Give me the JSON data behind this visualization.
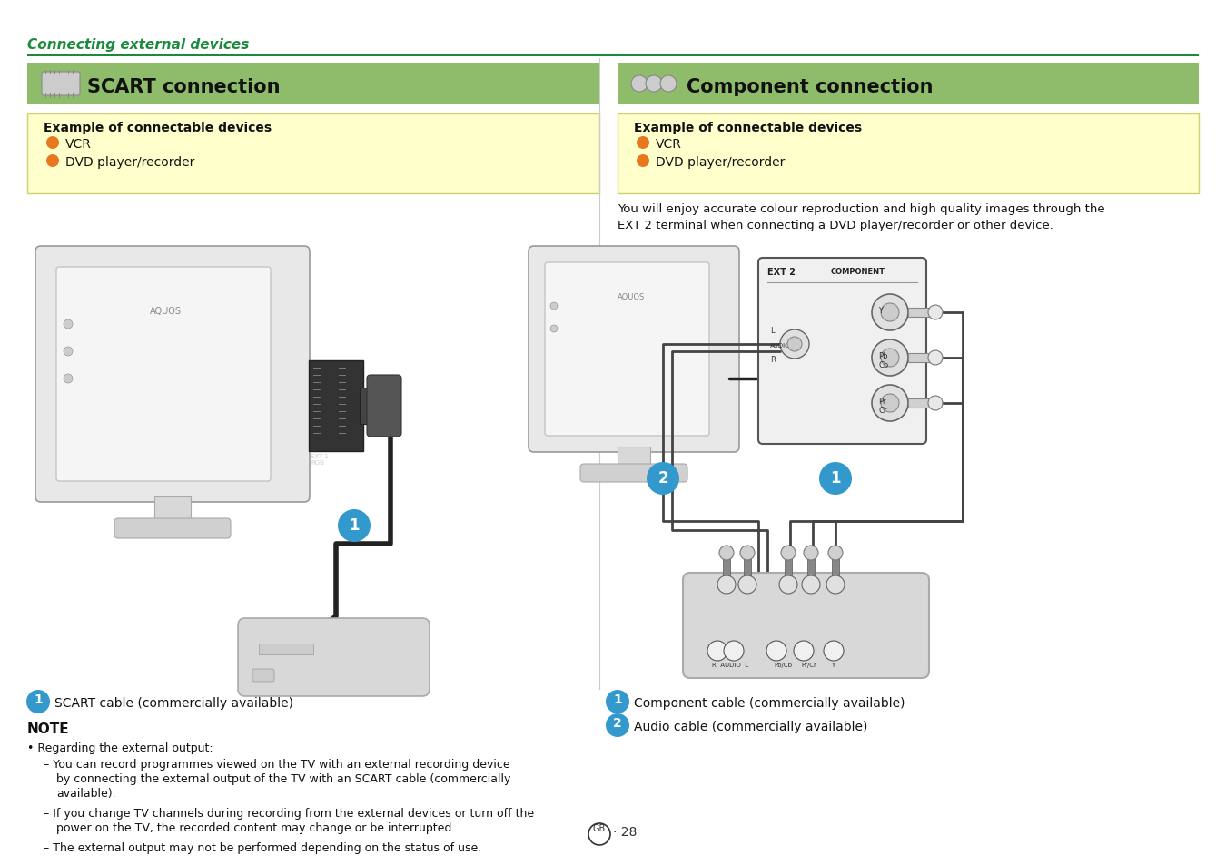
{
  "page_bg": "#ffffff",
  "header_text": "Connecting external devices",
  "header_color": "#1a8a3c",
  "header_line_color": "#1a8a3c",
  "scart_box_bg": "#8fbc6a",
  "scart_title": "SCART connection",
  "comp_box_bg": "#8fbc6a",
  "comp_title": "Component connection",
  "example_bg": "#ffffcc",
  "example_border": "#d0d070",
  "example_title": "Example of connectable devices",
  "example_item1": "VCR",
  "example_item2": "DVD player/recorder",
  "bullet_color": "#e87820",
  "comp_desc_line1": "You will enjoy accurate colour reproduction and high quality images through the",
  "comp_desc_line2": "EXT 2 terminal when connecting a DVD player/recorder or other device.",
  "note_item1": "SCART cable (commercially available)",
  "note_header": "NOTE",
  "note_bullet": "Regarding the external output:",
  "note_dash1": "You can record programmes viewed on the TV with an external recording device",
  "note_dash1b": "by connecting the external output of the TV with an SCART cable (commercially",
  "note_dash1c": "available).",
  "note_dash2": "If you change TV channels during recording from the external devices or turn off the",
  "note_dash2b": "power on the TV, the recorded content may change or be interrupted.",
  "note_dash3": "The external output may not be performed depending on the status of use.",
  "comp_note1": "Component cable (commercially available)",
  "comp_note2": "Audio cable (commercially available)",
  "page_number": "28",
  "circle_color": "#3399cc",
  "tv_body": "#e8e8e8",
  "tv_edge": "#999999",
  "device_body": "#d0d0d0"
}
